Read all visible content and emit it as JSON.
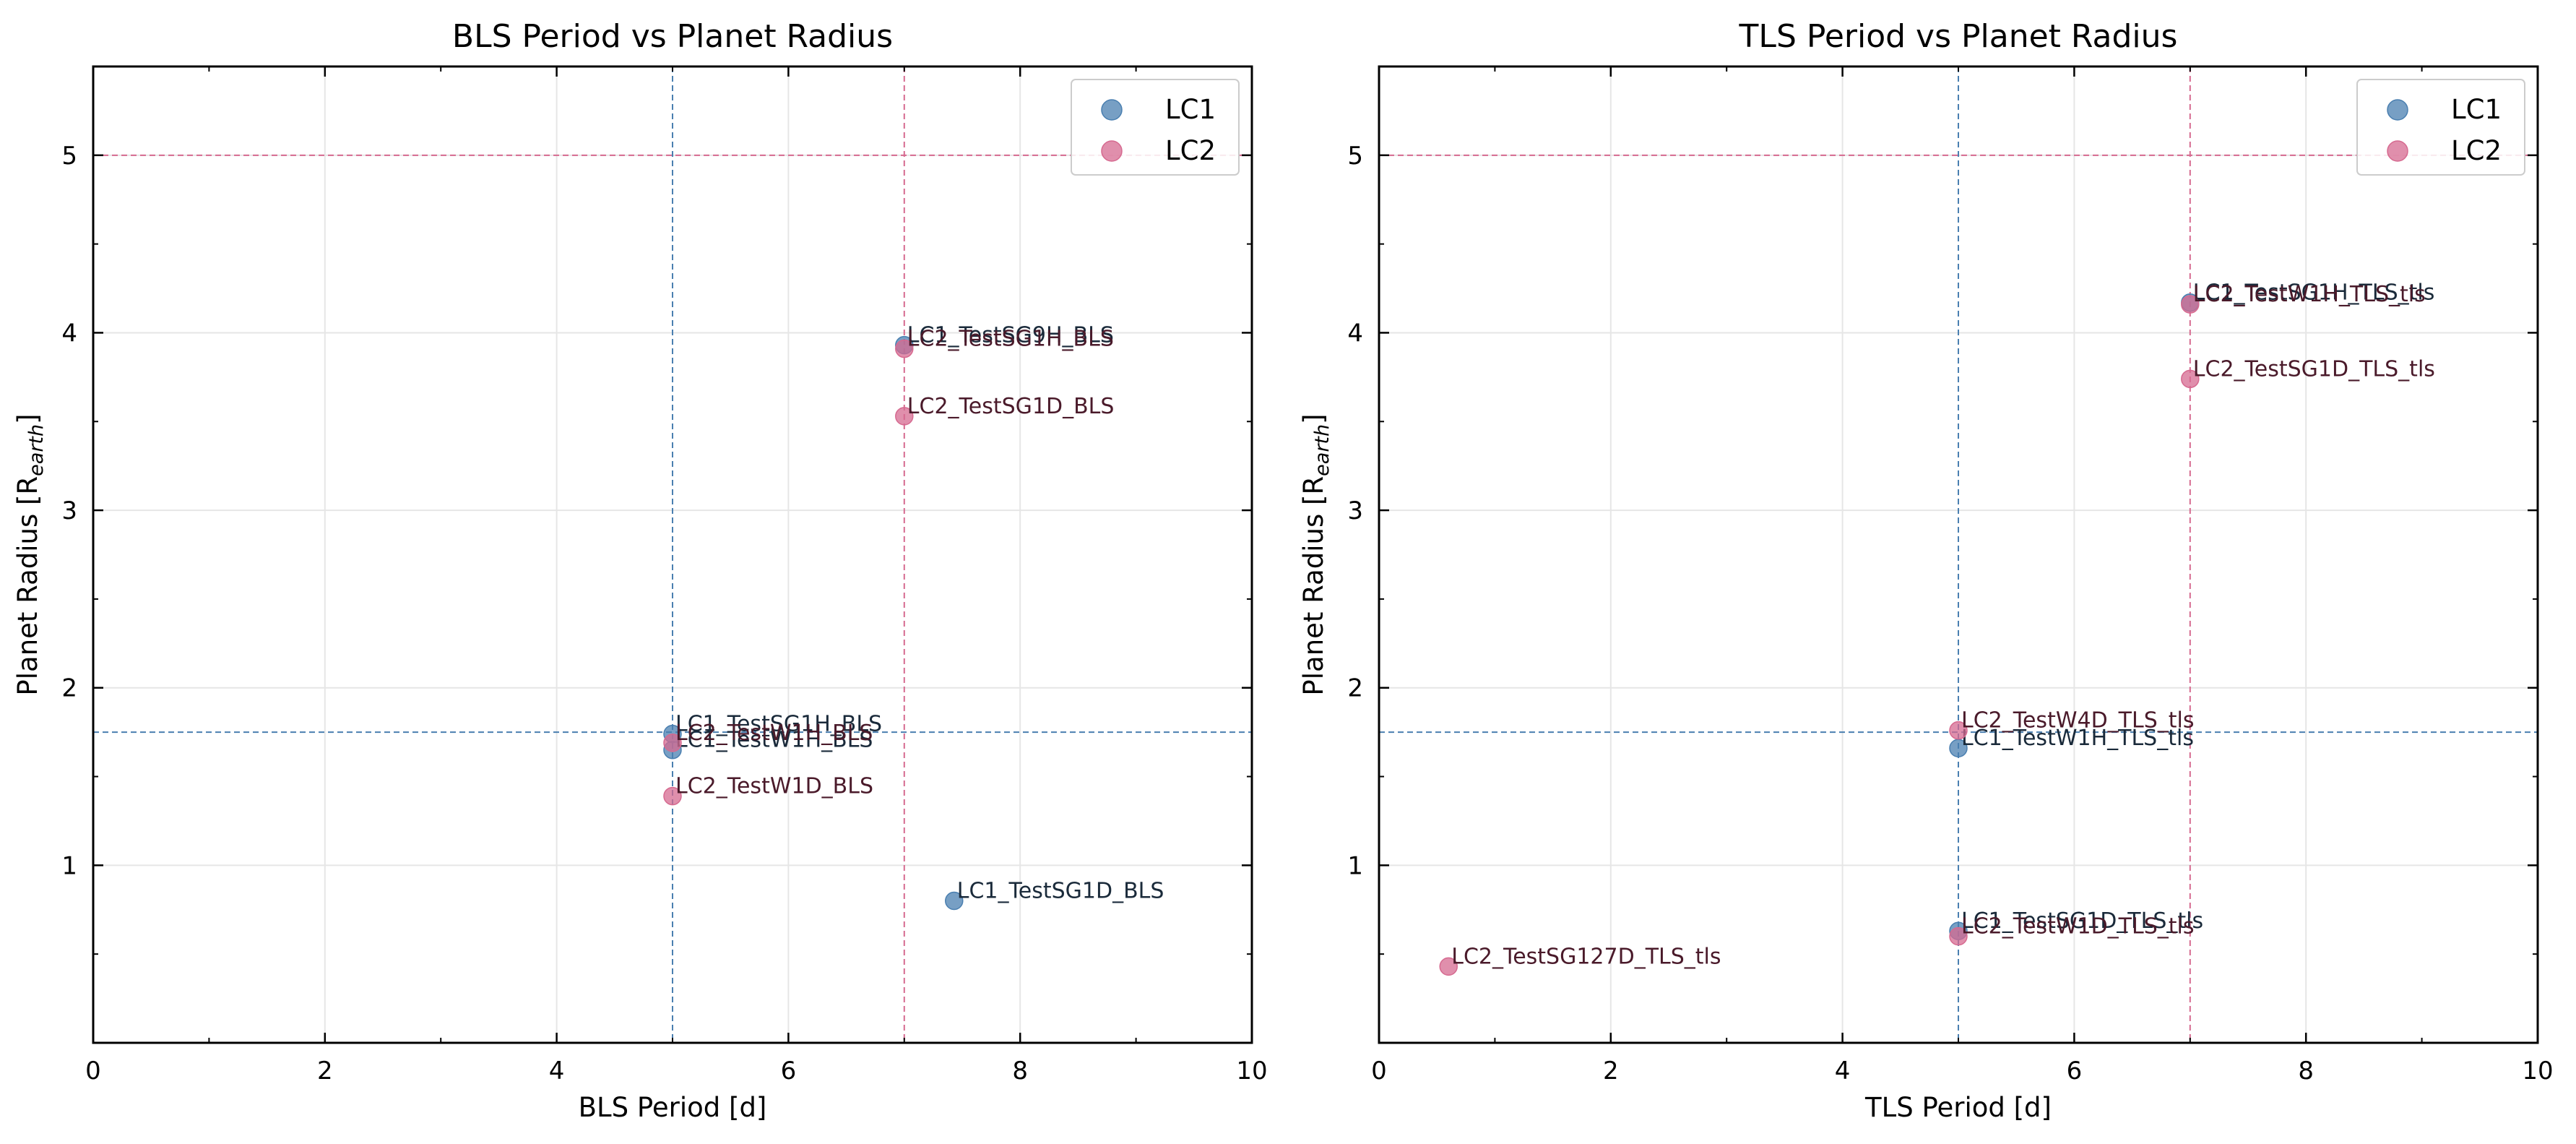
{
  "figure": {
    "colors": {
      "LC1": "#4a7fb0",
      "LC2": "#d66a90",
      "label_LC1": "#1a2a3a",
      "label_LC2": "#4a1a2a"
    }
  },
  "chart_data": [
    {
      "type": "scatter",
      "title": "BLS Period vs Planet Radius",
      "xlabel": "BLS Period [d]",
      "ylabel": "Planet Radius [R",
      "ylabel_sub": "earth",
      "ylabel_close": "]",
      "xlim": [
        0,
        10
      ],
      "ylim": [
        0,
        5.5
      ],
      "xticks": [
        0,
        2,
        4,
        6,
        8,
        10
      ],
      "yticks": [
        1,
        2,
        3,
        4,
        5
      ],
      "grid": true,
      "legend": "top-right",
      "reference_lines": {
        "LC1": {
          "x": 5.0,
          "y": 1.75
        },
        "LC2": {
          "x": 7.0,
          "y": 5.0
        }
      },
      "series": [
        {
          "name": "LC1",
          "points": [
            {
              "x": 5.0,
              "y": 1.74,
              "label": "LC1_TestSG1H_BLS"
            },
            {
              "x": 5.0,
              "y": 1.65,
              "label": "LC1_TestW1H_BLS"
            },
            {
              "x": 7.0,
              "y": 3.93,
              "label": "LC1_TestSG9H_BLS"
            },
            {
              "x": 7.43,
              "y": 0.8,
              "label": "LC1_TestSG1D_BLS"
            }
          ]
        },
        {
          "name": "LC2",
          "points": [
            {
              "x": 5.0,
              "y": 1.69,
              "label": "LC2_TestW1H_BLS"
            },
            {
              "x": 5.0,
              "y": 1.39,
              "label": "LC2_TestW1D_BLS"
            },
            {
              "x": 7.0,
              "y": 3.91,
              "label": "LC2_TestSG1H_BLS"
            },
            {
              "x": 7.0,
              "y": 3.53,
              "label": "LC2_TestSG1D_BLS"
            }
          ]
        }
      ]
    },
    {
      "type": "scatter",
      "title": "TLS Period vs Planet Radius",
      "xlabel": "TLS Period [d]",
      "ylabel": "Planet Radius [R",
      "ylabel_sub": "earth",
      "ylabel_close": "]",
      "xlim": [
        0,
        10
      ],
      "ylim": [
        0,
        5.5
      ],
      "xticks": [
        0,
        2,
        4,
        6,
        8,
        10
      ],
      "yticks": [
        1,
        2,
        3,
        4,
        5
      ],
      "grid": true,
      "legend": "top-right",
      "reference_lines": {
        "LC1": {
          "x": 5.0,
          "y": 1.75
        },
        "LC2": {
          "x": 7.0,
          "y": 5.0
        }
      },
      "series": [
        {
          "name": "LC1",
          "points": [
            {
              "x": 5.0,
              "y": 1.66,
              "label": "LC1_TestW1H_TLS_tls"
            },
            {
              "x": 5.0,
              "y": 0.63,
              "label": "LC1_TestSG1D_TLS_tls"
            },
            {
              "x": 7.0,
              "y": 4.17,
              "label": "LC1_TestSG1H_TLS_tls"
            }
          ]
        },
        {
          "name": "LC2",
          "points": [
            {
              "x": 5.0,
              "y": 1.76,
              "label": "LC2_TestW4D_TLS_tls"
            },
            {
              "x": 5.0,
              "y": 0.6,
              "label": "LC2_TestW1D_TLS_tls"
            },
            {
              "x": 7.0,
              "y": 4.16,
              "label": "LC2_TestW1H_TLS_tls"
            },
            {
              "x": 7.0,
              "y": 3.74,
              "label": "LC2_TestSG1D_TLS_tls"
            },
            {
              "x": 0.6,
              "y": 0.43,
              "label": "LC2_TestSG127D_TLS_tls"
            }
          ]
        }
      ]
    }
  ]
}
